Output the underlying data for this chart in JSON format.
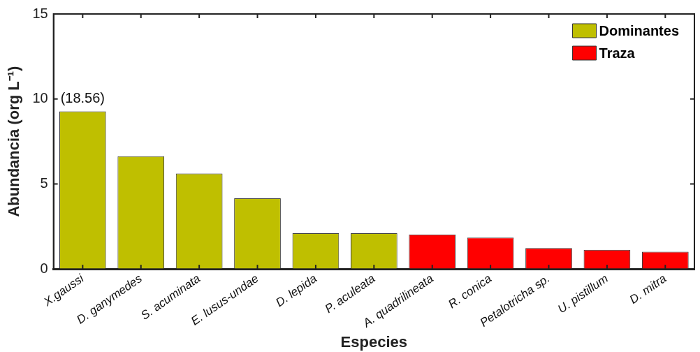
{
  "chart_data": {
    "type": "bar",
    "xlabel": "Especies",
    "ylabel": "Abundancia (org L⁻¹)",
    "categories": [
      "X.gaussi",
      "D. ganymedes",
      "S. acuminata",
      "E. lusus-undae",
      "D. lepida",
      "P. aculeata",
      "A. quadrilineata",
      "R. conica",
      "Petalotricha sp.",
      "U. pistillum",
      "D. mitra"
    ],
    "series": [
      {
        "name": "Dominantes",
        "color": "#bfbf00",
        "values": [
          9.27,
          6.63,
          5.61,
          4.15,
          2.1,
          2.1,
          null,
          null,
          null,
          null,
          null
        ]
      },
      {
        "name": "Traza",
        "color": "#ff0000",
        "values": [
          null,
          null,
          null,
          null,
          null,
          null,
          2.03,
          1.84,
          1.23,
          1.12,
          1.01
        ]
      }
    ],
    "ylim": [
      0,
      15
    ],
    "yticks": [
      0,
      5,
      10,
      15
    ],
    "grid": false,
    "legend": "top right",
    "annotations": [
      {
        "text": "(18.56)",
        "x": "X.gaussi",
        "y": 9.27
      }
    ]
  }
}
